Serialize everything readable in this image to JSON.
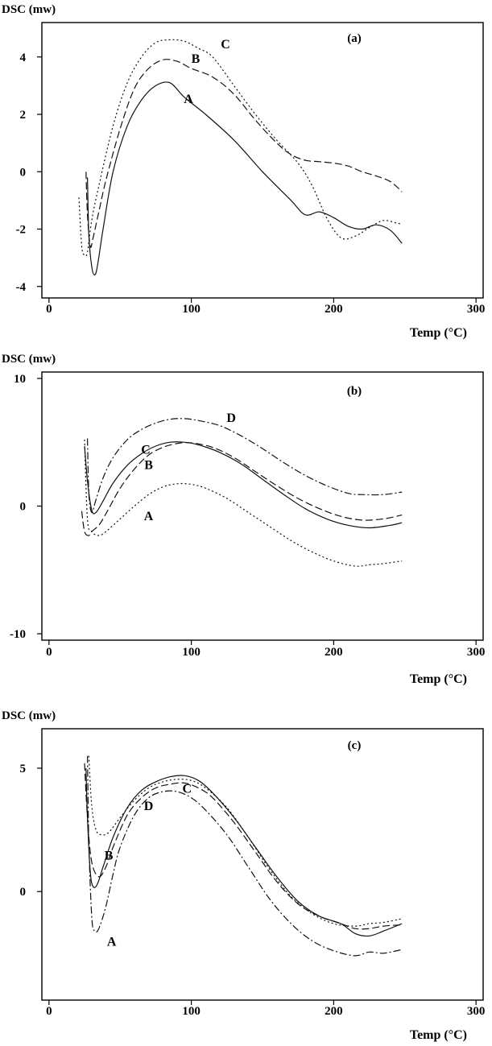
{
  "chart_data": [
    {
      "type": "line",
      "panel_label": "(a)",
      "ylabel": "DSC (mw)",
      "xlabel": "Temp (°C)",
      "xlim": [
        -5,
        305
      ],
      "ylim": [
        -4.4,
        5.2
      ],
      "xticks": [
        0,
        100,
        200,
        300
      ],
      "yticks": [
        -4,
        -2,
        0,
        2,
        4
      ],
      "grid": false,
      "legend": "inline-labels",
      "series": [
        {
          "name": "A",
          "style": "solid",
          "label_at": [
            98,
            2.4
          ],
          "x": [
            27,
            28,
            30,
            32,
            34,
            38,
            45,
            55,
            65,
            75,
            85,
            95,
            110,
            130,
            150,
            170,
            180,
            190,
            200,
            210,
            220,
            230,
            240,
            248
          ],
          "y": [
            -0.2,
            -2.2,
            -3.3,
            -3.6,
            -3.3,
            -2.0,
            0.0,
            1.6,
            2.5,
            3.0,
            3.1,
            2.6,
            2.0,
            1.1,
            0.0,
            -1.0,
            -1.5,
            -1.4,
            -1.6,
            -1.9,
            -2.0,
            -1.85,
            -2.05,
            -2.5
          ]
        },
        {
          "name": "B",
          "style": "dashed",
          "label_at": [
            103,
            3.8
          ],
          "x": [
            26,
            27,
            29,
            31,
            35,
            40,
            50,
            60,
            70,
            80,
            90,
            100,
            115,
            130,
            145,
            160,
            170,
            180,
            190,
            200,
            210,
            220,
            230,
            240,
            248
          ],
          "y": [
            0.0,
            -1.5,
            -2.6,
            -2.3,
            -1.4,
            -0.3,
            1.5,
            2.9,
            3.6,
            3.9,
            3.85,
            3.6,
            3.3,
            2.7,
            1.8,
            1.0,
            0.6,
            0.4,
            0.35,
            0.3,
            0.2,
            0.0,
            -0.15,
            -0.35,
            -0.7
          ]
        },
        {
          "name": "C",
          "style": "dotted",
          "label_at": [
            124,
            4.3
          ],
          "x": [
            21,
            23,
            25,
            27,
            30,
            35,
            45,
            55,
            65,
            75,
            85,
            95,
            105,
            115,
            130,
            145,
            160,
            175,
            185,
            195,
            205,
            215,
            225,
            235,
            245,
            248
          ],
          "y": [
            -0.9,
            -2.6,
            -2.9,
            -2.8,
            -1.7,
            -0.5,
            1.6,
            3.1,
            4.0,
            4.5,
            4.6,
            4.55,
            4.3,
            4.0,
            3.0,
            2.0,
            1.1,
            0.3,
            -0.5,
            -1.6,
            -2.3,
            -2.25,
            -1.95,
            -1.7,
            -1.8,
            -1.8
          ]
        }
      ]
    },
    {
      "type": "line",
      "panel_label": "(b)",
      "ylabel": "DSC (mw)",
      "xlabel": "Temp (°C)",
      "xlim": [
        -5,
        305
      ],
      "ylim": [
        -10.5,
        10.5
      ],
      "xticks": [
        0,
        100,
        200,
        300
      ],
      "yticks": [
        -10,
        0,
        10
      ],
      "grid": false,
      "legend": "inline-labels",
      "series": [
        {
          "name": "A",
          "style": "dotted",
          "label_at": [
            70,
            -1.1
          ],
          "x": [
            25,
            27,
            30,
            35,
            40,
            50,
            60,
            70,
            80,
            90,
            100,
            110,
            125,
            140,
            155,
            170,
            185,
            200,
            215,
            225,
            235,
            248
          ],
          "y": [
            5.2,
            -1.0,
            -2.0,
            -2.3,
            -2.0,
            -1.0,
            0.0,
            0.9,
            1.5,
            1.75,
            1.7,
            1.4,
            0.6,
            -0.5,
            -1.6,
            -2.7,
            -3.6,
            -4.3,
            -4.7,
            -4.6,
            -4.5,
            -4.3
          ]
        },
        {
          "name": "B",
          "style": "dashed",
          "label_at": [
            70,
            2.9
          ],
          "x": [
            23,
            25,
            28,
            30,
            35,
            40,
            50,
            60,
            70,
            80,
            90,
            100,
            115,
            130,
            145,
            160,
            175,
            190,
            205,
            220,
            235,
            248
          ],
          "y": [
            -0.4,
            -2.0,
            -2.3,
            -2.0,
            -1.5,
            -0.6,
            1.4,
            2.9,
            4.0,
            4.6,
            4.9,
            4.95,
            4.6,
            3.8,
            2.7,
            1.6,
            0.6,
            -0.2,
            -0.8,
            -1.1,
            -1.0,
            -0.7
          ]
        },
        {
          "name": "C",
          "style": "solid",
          "label_at": [
            68,
            4.1
          ],
          "x": [
            25,
            27,
            30,
            33,
            38,
            45,
            55,
            65,
            75,
            85,
            95,
            105,
            120,
            135,
            150,
            165,
            180,
            195,
            210,
            225,
            240,
            248
          ],
          "y": [
            4.7,
            2.0,
            -0.3,
            -0.5,
            0.4,
            1.8,
            3.2,
            4.1,
            4.7,
            5.0,
            5.0,
            4.8,
            4.2,
            3.3,
            2.1,
            0.9,
            -0.2,
            -1.0,
            -1.5,
            -1.7,
            -1.5,
            -1.3
          ]
        },
        {
          "name": "D",
          "style": "dashdot",
          "label_at": [
            128,
            6.6
          ],
          "x": [
            27,
            28,
            30,
            33,
            38,
            45,
            55,
            65,
            75,
            85,
            95,
            105,
            120,
            135,
            150,
            165,
            180,
            195,
            210,
            220,
            235,
            248
          ],
          "y": [
            5.3,
            1.0,
            -0.5,
            0.5,
            2.2,
            3.8,
            5.2,
            6.0,
            6.5,
            6.8,
            6.85,
            6.7,
            6.3,
            5.5,
            4.5,
            3.4,
            2.4,
            1.6,
            1.0,
            0.9,
            0.9,
            1.1
          ]
        }
      ]
    },
    {
      "type": "line",
      "panel_label": "(c)",
      "ylabel": "DSC (mw)",
      "xlabel": "Temp (°C)",
      "xlim": [
        -5,
        305
      ],
      "ylim": [
        -4.4,
        6.6
      ],
      "xticks": [
        0,
        100,
        200,
        300
      ],
      "yticks": [
        0,
        5
      ],
      "grid": false,
      "legend": "inline-labels",
      "series": [
        {
          "name": "A",
          "style": "dashdot",
          "label_at": [
            44,
            -2.2
          ],
          "x": [
            27,
            28,
            30,
            32,
            35,
            40,
            45,
            50,
            60,
            70,
            80,
            90,
            100,
            110,
            125,
            140,
            155,
            170,
            185,
            200,
            215,
            225,
            235,
            248
          ],
          "y": [
            5.5,
            2.0,
            -1.0,
            -1.6,
            -1.5,
            -0.6,
            0.7,
            1.8,
            3.1,
            3.8,
            4.05,
            4.05,
            3.8,
            3.3,
            2.3,
            1.0,
            -0.3,
            -1.3,
            -2.0,
            -2.4,
            -2.6,
            -2.45,
            -2.5,
            -2.35
          ]
        },
        {
          "name": "B",
          "style": "solid",
          "label_at": [
            42,
            1.3
          ],
          "x": [
            26,
            27,
            29,
            31,
            34,
            38,
            45,
            55,
            65,
            75,
            85,
            95,
            105,
            115,
            130,
            145,
            160,
            175,
            190,
            205,
            215,
            225,
            235,
            248
          ],
          "y": [
            5.0,
            3.0,
            0.8,
            0.2,
            0.3,
            1.0,
            2.2,
            3.4,
            4.1,
            4.45,
            4.65,
            4.7,
            4.5,
            4.0,
            3.0,
            1.8,
            0.6,
            -0.4,
            -1.0,
            -1.3,
            -1.7,
            -1.8,
            -1.6,
            -1.3
          ]
        },
        {
          "name": "C",
          "style": "dotted",
          "label_at": [
            97,
            4.0
          ],
          "x": [
            28,
            30,
            33,
            37,
            42,
            50,
            60,
            70,
            80,
            90,
            100,
            110,
            125,
            140,
            155,
            170,
            185,
            200,
            215,
            225,
            235,
            248
          ],
          "y": [
            5.5,
            3.5,
            2.5,
            2.3,
            2.4,
            3.0,
            3.7,
            4.2,
            4.45,
            4.55,
            4.5,
            4.2,
            3.4,
            2.2,
            0.9,
            -0.2,
            -0.9,
            -1.3,
            -1.4,
            -1.3,
            -1.25,
            -1.1
          ]
        },
        {
          "name": "D",
          "style": "dashed",
          "label_at": [
            70,
            3.3
          ],
          "x": [
            25,
            27,
            30,
            35,
            40,
            45,
            55,
            65,
            75,
            85,
            95,
            105,
            115,
            130,
            145,
            160,
            175,
            190,
            205,
            215,
            225,
            235,
            248
          ],
          "y": [
            5.2,
            3.0,
            1.2,
            0.6,
            1.0,
            1.8,
            3.1,
            3.8,
            4.2,
            4.35,
            4.4,
            4.2,
            3.8,
            2.8,
            1.6,
            0.4,
            -0.5,
            -1.0,
            -1.3,
            -1.5,
            -1.5,
            -1.4,
            -1.35
          ]
        }
      ]
    }
  ]
}
